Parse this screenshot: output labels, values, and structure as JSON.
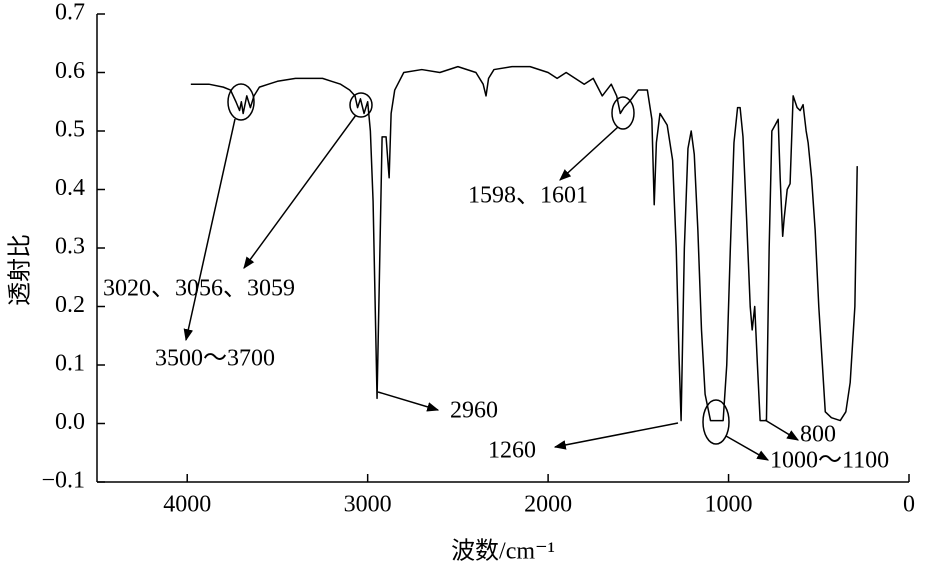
{
  "chart_data": {
    "type": "line",
    "x_label": "波数/cm⁻¹",
    "y_label": "透射比",
    "xlim": [
      4500,
      0
    ],
    "ylim": [
      -0.1,
      0.7
    ],
    "xticks": [
      4000,
      3000,
      2000,
      1000,
      0
    ],
    "yticks": [
      {
        "value": -0.1,
        "label": "−0.1"
      },
      {
        "value": 0,
        "label": "0.0"
      },
      0.1,
      0.2,
      0.3,
      0.4,
      0.5,
      0.6,
      0.7
    ],
    "x": [
      3980,
      3880,
      3800,
      3760,
      3730,
      3710,
      3700,
      3690,
      3670,
      3650,
      3630,
      3600,
      3550,
      3500,
      3400,
      3300,
      3250,
      3200,
      3150,
      3100,
      3070,
      3056,
      3040,
      3020,
      3000,
      2985,
      2970,
      2948,
      2935,
      2920,
      2898,
      2881,
      2870,
      2850,
      2800,
      2700,
      2600,
      2500,
      2400,
      2360,
      2344,
      2330,
      2300,
      2200,
      2100,
      2000,
      1950,
      1900,
      1800,
      1750,
      1700,
      1650,
      1620,
      1600,
      1580,
      1550,
      1500,
      1450,
      1425,
      1412,
      1400,
      1380,
      1340,
      1310,
      1290,
      1275,
      1263,
      1245,
      1225,
      1207,
      1190,
      1170,
      1150,
      1130,
      1100,
      1060,
      1030,
      1010,
      990,
      970,
      950,
      936,
      920,
      900,
      880,
      869,
      855,
      840,
      825,
      790,
      775,
      760,
      742,
      725,
      714,
      700,
      692,
      675,
      659,
      642,
      620,
      603,
      587,
      570,
      559,
      540,
      520,
      500,
      480,
      464,
      430,
      381,
      350,
      326,
      300,
      287
    ],
    "series": [
      {
        "color": "#000000",
        "values": [
          0.58,
          0.58,
          0.575,
          0.57,
          0.55,
          0.535,
          0.55,
          0.53,
          0.56,
          0.54,
          0.56,
          0.575,
          0.58,
          0.585,
          0.59,
          0.59,
          0.59,
          0.585,
          0.58,
          0.57,
          0.56,
          0.54,
          0.555,
          0.53,
          0.55,
          0.5,
          0.38,
          0.043,
          0.25,
          0.49,
          0.49,
          0.42,
          0.53,
          0.57,
          0.6,
          0.605,
          0.6,
          0.61,
          0.6,
          0.58,
          0.56,
          0.59,
          0.605,
          0.61,
          0.61,
          0.6,
          0.59,
          0.6,
          0.58,
          0.59,
          0.56,
          0.58,
          0.56,
          0.53,
          0.54,
          0.55,
          0.57,
          0.57,
          0.52,
          0.374,
          0.48,
          0.53,
          0.51,
          0.45,
          0.3,
          0.12,
          0.005,
          0.3,
          0.47,
          0.5,
          0.46,
          0.33,
          0.16,
          0.05,
          0.005,
          0.005,
          0.005,
          0.1,
          0.3,
          0.48,
          0.54,
          0.54,
          0.49,
          0.35,
          0.2,
          0.16,
          0.2,
          0.1,
          0.005,
          0.005,
          0.3,
          0.5,
          0.51,
          0.52,
          0.42,
          0.32,
          0.35,
          0.4,
          0.41,
          0.56,
          0.54,
          0.535,
          0.545,
          0.5,
          0.48,
          0.42,
          0.33,
          0.2,
          0.1,
          0.02,
          0.01,
          0.005,
          0.02,
          0.07,
          0.2,
          0.44
        ]
      }
    ],
    "annotations": [
      "3500～3700",
      "3020、3056、3059",
      "1598、1601",
      "2960",
      "1260",
      "1000～1100",
      "800"
    ]
  }
}
